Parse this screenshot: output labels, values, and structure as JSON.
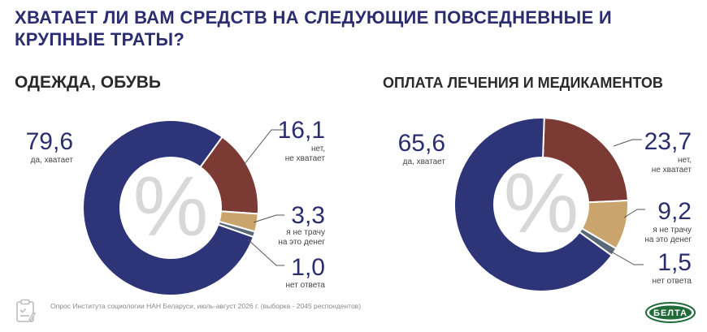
{
  "title": "ХВАТАЕТ ЛИ ВАМ СРЕДСТВ НА СЛЕДУЮЩИЕ ПОВСЕДНЕВНЫЕ И КРУПНЫЕ ТРАТЫ?",
  "colors": {
    "navy": "#2e3478",
    "brown": "#7b3a33",
    "tan": "#c9a46c",
    "slate": "#5a6878",
    "percent_sign": "#d8d8d8"
  },
  "center_symbol": "%",
  "chart_data": [
    {
      "type": "pie",
      "title": "ОДЕЖДА, ОБУВЬ",
      "slices": [
        {
          "value": 79.6,
          "value_label": "79,6",
          "label": "да, хватает",
          "color": "#2e3478"
        },
        {
          "value": 16.1,
          "value_label": "16,1",
          "label": "нет, не хватает",
          "color": "#7b3a33"
        },
        {
          "value": 3.3,
          "value_label": "3,3",
          "label": "я не трачу на это денег",
          "color": "#c9a46c"
        },
        {
          "value": 1.0,
          "value_label": "1,0",
          "label": "нет ответа",
          "color": "#5a6878"
        }
      ]
    },
    {
      "type": "pie",
      "title": "ОПЛАТА ЛЕЧЕНИЯ И МЕДИКАМЕНТОВ",
      "slices": [
        {
          "value": 65.6,
          "value_label": "65,6",
          "label": "да, хватает",
          "color": "#2e3478"
        },
        {
          "value": 23.7,
          "value_label": "23,7",
          "label": "нет, не хватает",
          "color": "#7b3a33"
        },
        {
          "value": 9.2,
          "value_label": "9,2",
          "label": "я не трачу на это денег",
          "color": "#c9a46c"
        },
        {
          "value": 1.5,
          "value_label": "1,5",
          "label": "нет ответа",
          "color": "#5a6878"
        }
      ]
    }
  ],
  "footer": {
    "source_note": "Опрос Института социологии НАН Беларуси, июль-август 2026 г. (выборка - 2045 респондентов)",
    "logo_text": "БЕЛТА",
    "icon": "clipboard-icon"
  }
}
